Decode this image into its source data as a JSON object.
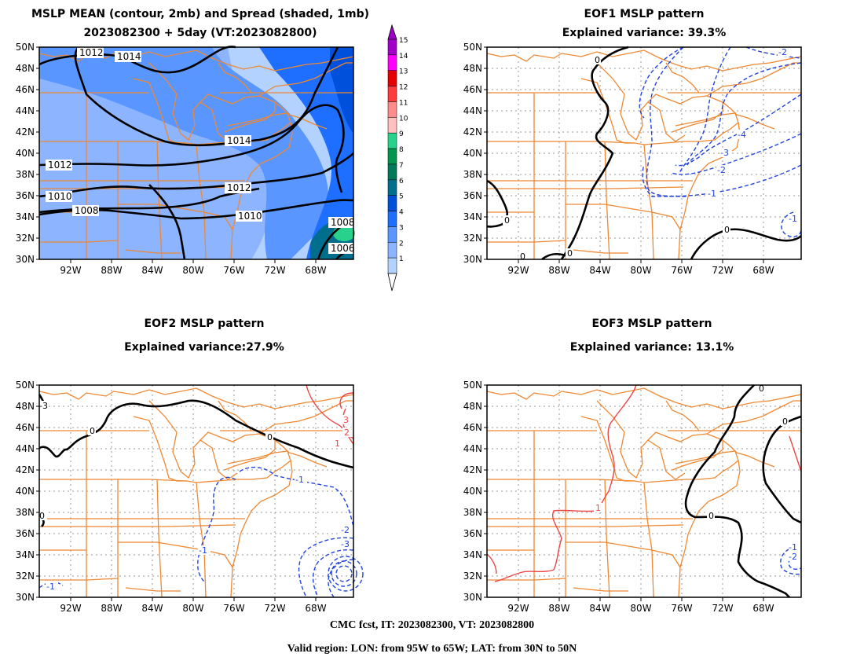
{
  "panels": [
    {
      "id": "mean",
      "title1": "MSLP MEAN (contour, 2mb) and Spread (shaded, 1mb)",
      "title2": "2023082300 + 5day (VT:2023082800)"
    },
    {
      "id": "eof1",
      "title1": "EOF1 MSLP pattern",
      "title2": "Explained variance: 39.3%"
    },
    {
      "id": "eof2",
      "title1": "EOF2 MSLP pattern",
      "title2": "Explained variance:27.9%"
    },
    {
      "id": "eof3",
      "title1": "EOF3 MSLP pattern",
      "title2": "Explained variance: 13.1%"
    }
  ],
  "axes": {
    "lat_labels": [
      "50N",
      "48N",
      "46N",
      "44N",
      "42N",
      "40N",
      "38N",
      "36N",
      "34N",
      "32N",
      "30N"
    ],
    "lon_labels": [
      "92W",
      "88W",
      "84W",
      "80W",
      "76W",
      "72W",
      "68W"
    ]
  },
  "colorbar": {
    "levels": [
      "15",
      "14",
      "13",
      "12",
      "11",
      "10",
      "9",
      "8",
      "7",
      "6",
      "5",
      "4",
      "3",
      "2",
      "1"
    ],
    "colors": [
      "#a000c8",
      "#ff00ff",
      "#e60000",
      "#ff3c3c",
      "#ff8c8c",
      "#ffc0c0",
      "#28d28c",
      "#009650",
      "#00785a",
      "#006e8c",
      "#0050dc",
      "#1e6eff",
      "#5a96ff",
      "#8cb4ff",
      "#b4d2ff"
    ]
  },
  "colors": {
    "map_lines": "#ee8833",
    "contour_neg": "#2244dd",
    "contour_pos": "#ee4444",
    "contour_zero": "#000000"
  },
  "mean_labels": [
    "1012",
    "1014",
    "1014",
    "1012",
    "1012",
    "1010",
    "1010",
    "1008",
    "1008",
    "1006"
  ],
  "eof1_labels": [
    "0",
    "-2",
    "-4",
    "-3",
    "-2",
    "-1",
    "-1",
    "0",
    "0",
    "0",
    "0"
  ],
  "eof2_labels": [
    "-3",
    "3",
    "2",
    "1",
    "0",
    "0",
    "-1",
    "-2",
    "-3",
    "-1",
    "-1",
    "0"
  ],
  "eof3_labels": [
    "0",
    "0",
    "1",
    "0",
    "-1",
    "-2"
  ],
  "footer": {
    "line1": "CMC fcst, IT: 2023082300, VT: 2023082800",
    "line2": "Valid region: LON: from 95W to 65W; LAT: from 30N to 50N"
  }
}
